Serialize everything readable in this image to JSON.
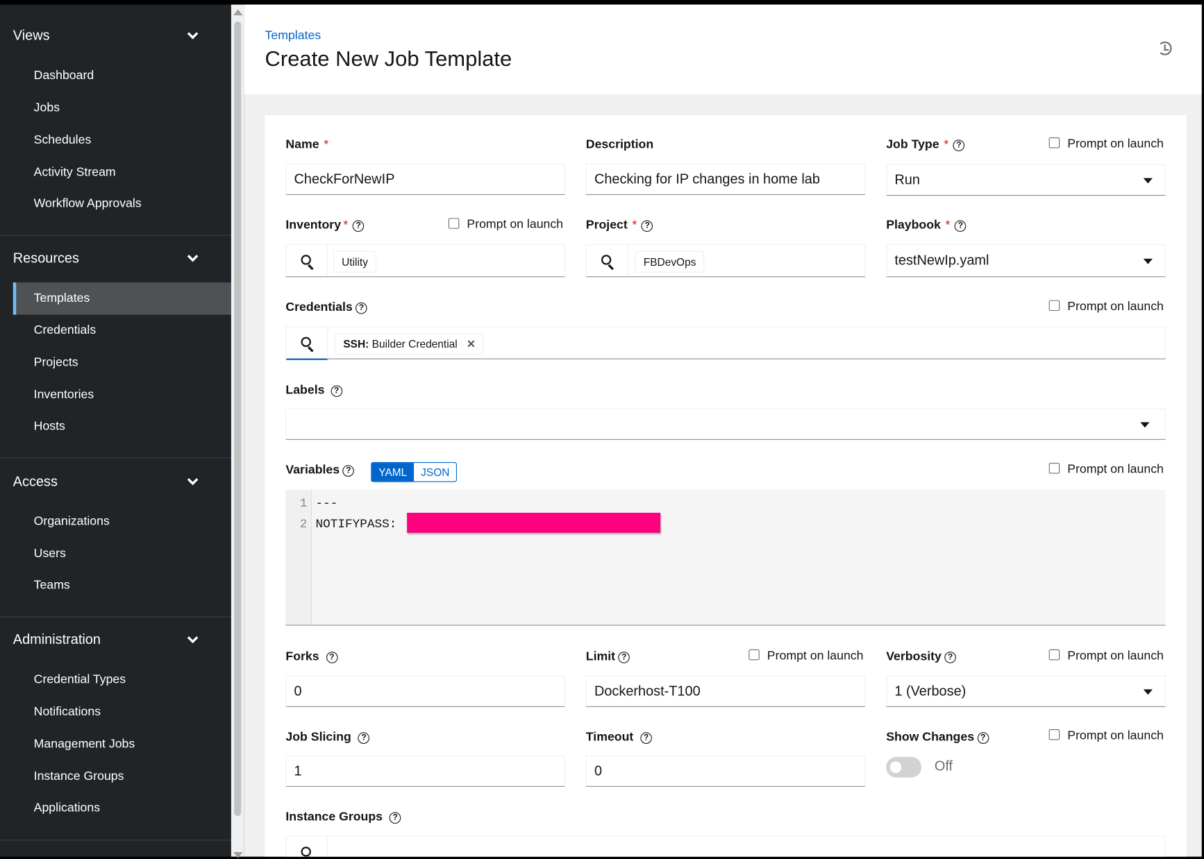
{
  "sidebar": {
    "sections": [
      {
        "title": "Views",
        "items": [
          "Dashboard",
          "Jobs",
          "Schedules",
          "Activity Stream",
          "Workflow Approvals"
        ]
      },
      {
        "title": "Resources",
        "items": [
          "Templates",
          "Credentials",
          "Projects",
          "Inventories",
          "Hosts"
        ]
      },
      {
        "title": "Access",
        "items": [
          "Organizations",
          "Users",
          "Teams"
        ]
      },
      {
        "title": "Administration",
        "items": [
          "Credential Types",
          "Notifications",
          "Management Jobs",
          "Instance Groups",
          "Applications"
        ]
      }
    ],
    "active_item": "Templates"
  },
  "header": {
    "breadcrumb": "Templates",
    "title": "Create New Job Template",
    "history_icon": "history-icon"
  },
  "form": {
    "prompt_label": "Prompt on launch",
    "name": {
      "label": "Name",
      "value": "CheckForNewIP"
    },
    "description": {
      "label": "Description",
      "value": "Checking for IP changes in home lab"
    },
    "job_type": {
      "label": "Job Type",
      "value": "Run"
    },
    "inventory": {
      "label": "Inventory",
      "value": "Utility"
    },
    "project": {
      "label": "Project",
      "value": "FBDevOps"
    },
    "playbook": {
      "label": "Playbook",
      "value": "testNewIp.yaml"
    },
    "credentials": {
      "label": "Credentials",
      "chip_type": "SSH:",
      "chip_value": "Builder Credential"
    },
    "labels": {
      "label": "Labels",
      "value": ""
    },
    "variables": {
      "label": "Variables",
      "modes": [
        "YAML",
        "JSON"
      ],
      "selected_mode": "YAML",
      "lines": [
        "1",
        "2"
      ],
      "code": [
        "---",
        "NOTIFYPASS:"
      ]
    },
    "forks": {
      "label": "Forks",
      "value": "0"
    },
    "limit": {
      "label": "Limit",
      "value": "Dockerhost-T100"
    },
    "verbosity": {
      "label": "Verbosity",
      "value": "1 (Verbose)"
    },
    "job_slicing": {
      "label": "Job Slicing",
      "value": "1"
    },
    "timeout": {
      "label": "Timeout",
      "value": "0"
    },
    "show_changes": {
      "label": "Show Changes",
      "state": "Off"
    },
    "instance_groups": {
      "label": "Instance Groups"
    }
  },
  "colors": {
    "sidebar_bg": "#212427",
    "accent": "#0066cc",
    "required": "#c9190b",
    "redaction": "#ff007f"
  }
}
